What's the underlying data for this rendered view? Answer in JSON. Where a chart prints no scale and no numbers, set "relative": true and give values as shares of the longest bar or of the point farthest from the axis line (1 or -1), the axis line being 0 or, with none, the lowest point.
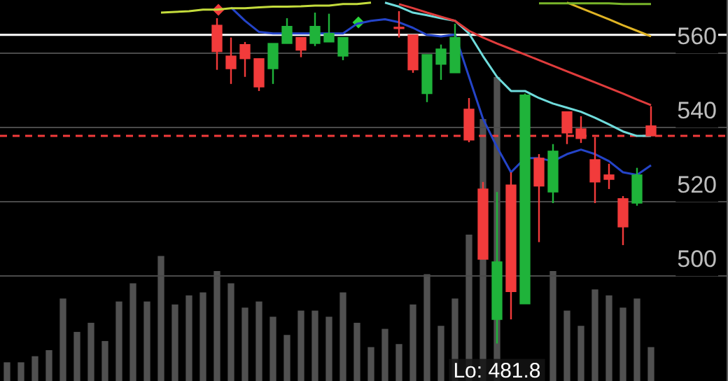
{
  "chart_data": [
    {
      "type": "candlestick",
      "categories": [
        null,
        null,
        null,
        null,
        null,
        null,
        null,
        null,
        null,
        null,
        null,
        null,
        null,
        null,
        null,
        null,
        null,
        null,
        null,
        null,
        null,
        null,
        null,
        null,
        null,
        null,
        null,
        null,
        null,
        null,
        null,
        null,
        null,
        null,
        null,
        null,
        null,
        null,
        null,
        null,
        null,
        null,
        null,
        null,
        null,
        null,
        null,
        null,
        null,
        null,
        null,
        null
      ],
      "ohlc": [
        null,
        null,
        null,
        null,
        null,
        null,
        null,
        null,
        null,
        null,
        null,
        null,
        null,
        null,
        null,
        [
          567.5,
          569.4,
          555.5,
          560.4
        ],
        [
          559.2,
          564.2,
          551.7,
          555.8
        ],
        [
          562.3,
          563.0,
          553.6,
          558.5
        ],
        [
          558.5,
          558.5,
          549.8,
          550.9
        ],
        [
          555.8,
          562.6,
          551.7,
          562.6
        ],
        [
          562.6,
          569.4,
          562.6,
          567.2
        ],
        [
          564.2,
          564.2,
          558.9,
          560.8
        ],
        [
          562.6,
          570.9,
          561.9,
          567.2
        ],
        [
          563.0,
          570.6,
          563.0,
          565.3
        ],
        [
          559.2,
          564.2,
          558.1,
          564.2
        ],
        null,
        null,
        null,
        [
          566.8,
          571.3,
          564.2,
          566.6
        ],
        [
          564.9,
          564.9,
          554.7,
          555.5
        ],
        [
          549.1,
          559.6,
          546.8,
          559.6
        ],
        [
          557.0,
          562.3,
          552.8,
          561.1
        ],
        [
          554.7,
          567.9,
          554.7,
          564.2
        ],
        [
          544.9,
          547.9,
          536.0,
          536.6
        ],
        [
          523.4,
          525.3,
          504.5,
          504.5
        ],
        [
          488.3,
          522.6,
          481.8,
          503.8
        ],
        [
          524.5,
          527.9,
          488.3,
          495.8
        ],
        [
          492.5,
          549.1,
          492.5,
          548.7
        ],
        [
          531.7,
          532.8,
          509.1,
          524.2
        ],
        [
          522.6,
          535.5,
          519.6,
          533.6
        ],
        [
          544.2,
          544.2,
          535.5,
          538.5
        ],
        [
          539.6,
          543.0,
          535.8,
          537.0
        ],
        [
          531.3,
          537.4,
          519.6,
          525.3
        ],
        [
          527.2,
          530.2,
          523.4,
          526.0
        ],
        [
          520.8,
          521.5,
          508.3,
          513.2
        ],
        [
          519.6,
          529.1,
          518.9,
          527.2
        ],
        [
          540.4,
          545.7,
          537.7,
          537.7
        ],
        null,
        null,
        null,
        null,
        null
      ],
      "colors": [
        null,
        null,
        null,
        null,
        null,
        null,
        null,
        null,
        null,
        null,
        null,
        null,
        null,
        null,
        null,
        "#f23b3b",
        "#f23b3b",
        "#f23b3b",
        "#f23b3b",
        "#1fb33a",
        "#1fb33a",
        "#f23b3b",
        "#1fb33a",
        "#1fb33a",
        "#1fb33a",
        null,
        null,
        null,
        "#f23b3b",
        "#f23b3b",
        "#1fb33a",
        "#1fb33a",
        "#1fb33a",
        "#f23b3b",
        "#f23b3b",
        "#1fb33a",
        "#f23b3b",
        "#1fb33a",
        "#f23b3b",
        "#1fb33a",
        "#f23b3b",
        "#f23b3b",
        "#f23b3b",
        "#f23b3b",
        "#f23b3b",
        "#1fb33a",
        "#f23b3b",
        null,
        null,
        null,
        null,
        null
      ],
      "series": [
        {
          "type": "line",
          "color": "#c4dc3c",
          "values": [
            null,
            null,
            null,
            null,
            null,
            null,
            null,
            null,
            null,
            null,
            null,
            570.9,
            571.1,
            571.3,
            571.7,
            571.7,
            572.1,
            572.1,
            572.3,
            572.5,
            572.5,
            572.6,
            572.8,
            572.8,
            573.2,
            573.2,
            573.6,
            null,
            null,
            null,
            null,
            null,
            null,
            null,
            null,
            null,
            null,
            null,
            null,
            null,
            null,
            null,
            null,
            null,
            null,
            null,
            null,
            null,
            null,
            null,
            null,
            null
          ]
        },
        {
          "type": "line",
          "color": "#78b42a",
          "values": [
            null,
            null,
            null,
            null,
            null,
            null,
            null,
            null,
            null,
            null,
            null,
            null,
            null,
            null,
            null,
            null,
            null,
            null,
            null,
            null,
            null,
            null,
            null,
            null,
            null,
            null,
            null,
            null,
            null,
            null,
            null,
            null,
            null,
            null,
            null,
            null,
            null,
            null,
            573.4,
            573.4,
            573.4,
            573.4,
            573.4,
            573.4,
            573.2,
            573.2,
            573.2,
            null,
            null,
            null,
            null,
            null
          ]
        },
        {
          "type": "line",
          "color": "#e0b424",
          "values": [
            null,
            null,
            null,
            null,
            null,
            null,
            null,
            null,
            null,
            null,
            null,
            null,
            null,
            null,
            null,
            null,
            null,
            null,
            null,
            null,
            null,
            null,
            null,
            null,
            null,
            null,
            null,
            null,
            null,
            null,
            null,
            null,
            null,
            null,
            null,
            null,
            null,
            null,
            null,
            null,
            573.6,
            572.1,
            570.6,
            569.1,
            567.5,
            566.0,
            564.5,
            null,
            null,
            null,
            null,
            null
          ]
        },
        {
          "type": "line",
          "color": "#e03c3c",
          "values": [
            null,
            null,
            null,
            null,
            null,
            null,
            null,
            null,
            null,
            null,
            null,
            null,
            null,
            null,
            null,
            null,
            null,
            null,
            null,
            null,
            null,
            null,
            null,
            null,
            null,
            null,
            null,
            null,
            573.2,
            572.1,
            570.9,
            569.8,
            568.7,
            566.0,
            564.2,
            562.6,
            561.1,
            559.6,
            558.1,
            556.6,
            555.1,
            553.6,
            552.1,
            550.6,
            549.1,
            547.5,
            546.0,
            null,
            null,
            null,
            null,
            null
          ]
        },
        {
          "type": "line",
          "color": "#6fdcdc",
          "values": [
            null,
            null,
            null,
            null,
            null,
            null,
            null,
            null,
            null,
            null,
            null,
            null,
            null,
            null,
            null,
            null,
            null,
            null,
            null,
            null,
            null,
            null,
            null,
            null,
            null,
            null,
            null,
            573.6,
            572.5,
            570.9,
            570.2,
            569.4,
            568.7,
            565.3,
            559.2,
            553.6,
            549.8,
            549.8,
            547.9,
            546.4,
            545.3,
            544.2,
            542.6,
            540.8,
            538.9,
            537.7,
            537.7,
            null,
            null,
            null,
            null,
            null
          ]
        },
        {
          "type": "line",
          "color": "#2444c8",
          "values": [
            null,
            null,
            null,
            null,
            null,
            null,
            null,
            null,
            null,
            null,
            null,
            null,
            null,
            null,
            null,
            null,
            572.3,
            568.7,
            565.7,
            565.3,
            565.3,
            565.3,
            565.3,
            565.3,
            565.3,
            567.9,
            568.7,
            569.1,
            568.3,
            566.8,
            564.9,
            564.5,
            565.0,
            553.6,
            542.3,
            534.7,
            527.9,
            531.7,
            531.7,
            530.9,
            532.8,
            534.0,
            532.8,
            530.9,
            527.9,
            527.2,
            529.8,
            null,
            null,
            null,
            null,
            null
          ]
        }
      ],
      "ylim": [
        471.7,
        574.3
      ],
      "yticks": [
        500,
        520,
        540,
        560
      ],
      "grid": "y",
      "tick_labels": "y",
      "ref_lines": [
        {
          "axis": "y",
          "value": 564.9,
          "color": "#ffffff"
        },
        {
          "axis": "y",
          "value": 537.7,
          "color": "#f23b3b",
          "line_style": "dashed"
        }
      ],
      "annotations": [
        {
          "text": "Lo: 481.8",
          "y": 481.8
        }
      ]
    },
    {
      "type": "bar",
      "relative": true,
      "color": "#505050",
      "tick_labels": false,
      "categories": [
        null,
        null,
        null,
        null,
        null,
        null,
        null,
        null,
        null,
        null,
        null,
        null,
        null,
        null,
        null,
        null,
        null,
        null,
        null,
        null,
        null,
        null,
        null,
        null,
        null,
        null,
        null,
        null,
        null,
        null,
        null,
        null,
        null,
        null,
        null,
        null,
        null,
        null,
        null,
        null,
        null,
        null,
        null,
        null,
        null,
        null,
        null,
        null,
        null,
        null,
        null,
        null
      ],
      "values": [
        0.06,
        0.06,
        0.08,
        0.1,
        0.27,
        0.16,
        0.19,
        0.13,
        0.26,
        0.32,
        0.26,
        0.41,
        0.25,
        0.28,
        0.29,
        0.36,
        0.32,
        0.24,
        0.26,
        0.21,
        0.15,
        0.23,
        0.23,
        0.21,
        0.29,
        0.19,
        0.11,
        0.17,
        0.12,
        0.25,
        0.35,
        0.18,
        0.27,
        0.48,
        0.86,
        1,
        null,
        null,
        null,
        0.36,
        0.23,
        0.18,
        0.3,
        0.28,
        0.24,
        0.27,
        0.11,
        null,
        null,
        null,
        null,
        null
      ]
    }
  ]
}
